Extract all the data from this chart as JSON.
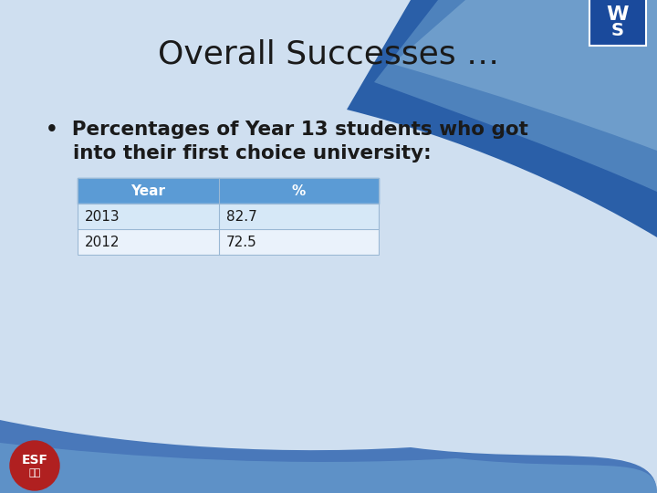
{
  "title": "Overall Successes …",
  "bullet_line1": "•  Percentages of Year 13 students who got",
  "bullet_line2": "    into their first choice university:",
  "table_headers": [
    "Year",
    "%"
  ],
  "table_rows": [
    [
      "2013",
      "82.7"
    ],
    [
      "2012",
      "72.5"
    ]
  ],
  "bg_color": "#cfdff0",
  "title_color": "#1a1a1a",
  "bullet_color": "#1a1a1a",
  "table_header_bg": "#5b9bd5",
  "table_header_text": "#ffffff",
  "table_row1_bg": "#d6e8f7",
  "table_row2_bg": "#eaf2fb",
  "table_border_color": "#9ab8d4",
  "swoosh1_color": "#2a5fa8",
  "swoosh2_color": "#5b8ec4",
  "swoosh3_color": "#8ab4d8",
  "bottom_swoosh1_color": "#3a6db5",
  "bottom_swoosh2_color": "#6a9fcf",
  "esf_circle_color": "#b02020",
  "esf_text_color": "#ffffff"
}
